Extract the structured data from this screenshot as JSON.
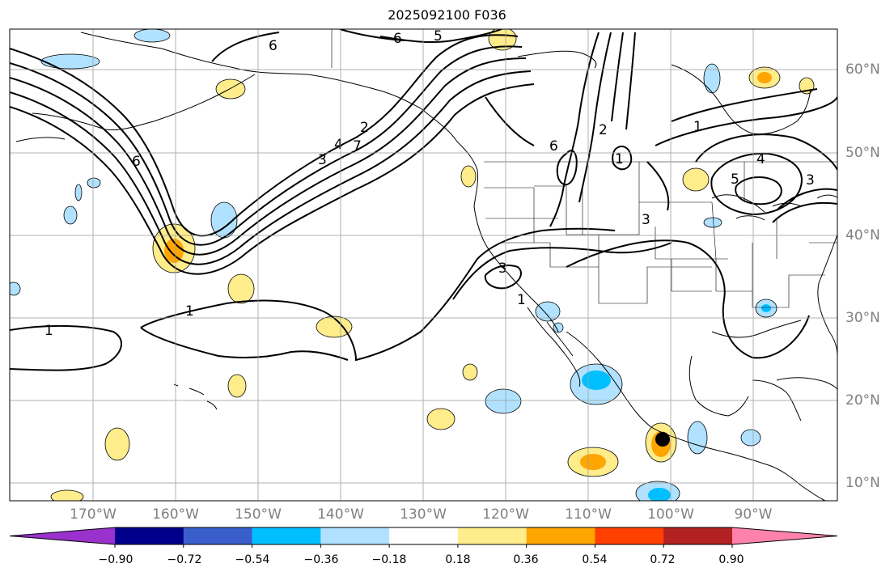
{
  "title": "2025092100 F036",
  "lat_labels": [
    "60°N",
    "50°N",
    "40°N",
    "30°N",
    "20°N",
    "10°N"
  ],
  "lon_labels": [
    "170°W",
    "160°W",
    "150°W",
    "140°W",
    "130°W",
    "120°W",
    "110°W",
    "100°W",
    "90°W"
  ],
  "contour_labels": [
    "6",
    "6",
    "5",
    "6",
    "4",
    "3",
    "2",
    "7",
    "6",
    "2",
    "1",
    "1",
    "4",
    "5",
    "3",
    "3",
    "3",
    "1",
    "1",
    "1"
  ],
  "colorbar": {
    "ticks": [
      "−0.90",
      "−0.72",
      "−0.54",
      "−0.36",
      "−0.18",
      "0.18",
      "0.36",
      "0.54",
      "0.72",
      "0.90"
    ],
    "colors": [
      "#9932cc",
      "#00008b",
      "#3a5fcd",
      "#00bfff",
      "#b0e2ff",
      "#ffffff",
      "#ffec8b",
      "#ffa500",
      "#ff4000",
      "#b22222",
      "#ff82ab"
    ]
  },
  "storm_marker": "tropical-cyclone-center"
}
